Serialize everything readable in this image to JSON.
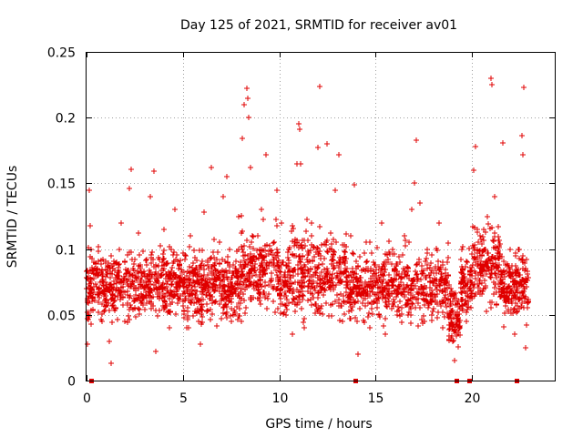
{
  "chart_data": {
    "type": "scatter",
    "title": "Day 125 of 2021, SRMTID for receiver av01",
    "xlabel": "GPS time / hours",
    "ylabel": "SRMTID / TECUs",
    "xlim": [
      0,
      24.3
    ],
    "ylim": [
      0,
      0.25
    ],
    "x_ticks": [
      0,
      5,
      10,
      15,
      20
    ],
    "x_tick_labels": [
      "0",
      "5",
      "10",
      "15",
      "20"
    ],
    "y_ticks": [
      0,
      0.05,
      0.1,
      0.15,
      0.2,
      0.25
    ],
    "y_tick_labels": [
      "0",
      "0.05",
      "0.1",
      "0.15",
      "0.2",
      "0.25"
    ],
    "grid": true,
    "marker": "plus",
    "series_color": "#e00000",
    "zero_markers_x": [
      0.25,
      13.95,
      19.2,
      19.85,
      22.3
    ],
    "series": [
      {
        "name": "SRMTID",
        "points": [
          [
            0.05,
            0.028
          ],
          [
            0.1,
            0.101
          ],
          [
            0.15,
            0.145
          ],
          [
            0.2,
            0.118
          ],
          [
            0.3,
            0.06
          ],
          [
            0.4,
            0.082
          ],
          [
            0.6,
            0.098
          ],
          [
            0.8,
            0.045
          ],
          [
            1.0,
            0.075
          ],
          [
            1.2,
            0.03
          ],
          [
            1.3,
            0.013
          ],
          [
            1.5,
            0.055
          ],
          [
            1.7,
            0.1
          ],
          [
            1.8,
            0.12
          ],
          [
            2.0,
            0.045
          ],
          [
            2.2,
            0.146
          ],
          [
            2.3,
            0.161
          ],
          [
            2.5,
            0.08
          ],
          [
            2.7,
            0.112
          ],
          [
            2.9,
            0.06
          ],
          [
            3.1,
            0.092
          ],
          [
            3.3,
            0.14
          ],
          [
            3.5,
            0.159
          ],
          [
            3.6,
            0.022
          ],
          [
            3.8,
            0.07
          ],
          [
            4.0,
            0.115
          ],
          [
            4.2,
            0.052
          ],
          [
            4.4,
            0.1
          ],
          [
            4.6,
            0.13
          ],
          [
            4.8,
            0.088
          ],
          [
            5.0,
            0.066
          ],
          [
            5.2,
            0.04
          ],
          [
            5.4,
            0.11
          ],
          [
            5.6,
            0.075
          ],
          [
            5.9,
            0.028
          ],
          [
            6.1,
            0.128
          ],
          [
            6.3,
            0.09
          ],
          [
            6.5,
            0.162
          ],
          [
            6.7,
            0.06
          ],
          [
            6.9,
            0.105
          ],
          [
            7.1,
            0.14
          ],
          [
            7.3,
            0.155
          ],
          [
            7.5,
            0.045
          ],
          [
            7.7,
            0.085
          ],
          [
            7.9,
            0.125
          ],
          [
            8.1,
            0.184
          ],
          [
            8.2,
            0.21
          ],
          [
            8.3,
            0.222
          ],
          [
            8.35,
            0.215
          ],
          [
            8.4,
            0.2
          ],
          [
            8.5,
            0.162
          ],
          [
            8.7,
            0.07
          ],
          [
            8.9,
            0.11
          ],
          [
            9.1,
            0.13
          ],
          [
            9.3,
            0.172
          ],
          [
            9.5,
            0.09
          ],
          [
            9.7,
            0.06
          ],
          [
            9.9,
            0.145
          ],
          [
            10.1,
            0.12
          ],
          [
            10.3,
            0.075
          ],
          [
            10.5,
            0.1
          ],
          [
            10.7,
            0.035
          ],
          [
            10.9,
            0.165
          ],
          [
            11.0,
            0.195
          ],
          [
            11.05,
            0.191
          ],
          [
            11.1,
            0.165
          ],
          [
            11.3,
            0.04
          ],
          [
            11.5,
            0.09
          ],
          [
            11.7,
            0.12
          ],
          [
            12.0,
            0.177
          ],
          [
            12.1,
            0.224
          ],
          [
            12.3,
            0.065
          ],
          [
            12.5,
            0.18
          ],
          [
            12.7,
            0.1
          ],
          [
            12.9,
            0.145
          ],
          [
            13.1,
            0.172
          ],
          [
            13.3,
            0.045
          ],
          [
            13.5,
            0.085
          ],
          [
            13.7,
            0.11
          ],
          [
            13.9,
            0.149
          ],
          [
            14.1,
            0.02
          ],
          [
            14.3,
            0.07
          ],
          [
            14.5,
            0.105
          ],
          [
            14.7,
            0.04
          ],
          [
            14.9,
            0.09
          ],
          [
            15.1,
            0.06
          ],
          [
            15.3,
            0.12
          ],
          [
            15.5,
            0.035
          ],
          [
            15.7,
            0.08
          ],
          [
            15.9,
            0.1
          ],
          [
            16.1,
            0.05
          ],
          [
            16.3,
            0.075
          ],
          [
            16.5,
            0.11
          ],
          [
            16.7,
            0.06
          ],
          [
            16.9,
            0.13
          ],
          [
            17.0,
            0.15
          ],
          [
            17.1,
            0.183
          ],
          [
            17.3,
            0.135
          ],
          [
            17.5,
            0.07
          ],
          [
            17.7,
            0.1
          ],
          [
            17.9,
            0.05
          ],
          [
            18.1,
            0.085
          ],
          [
            18.3,
            0.12
          ],
          [
            18.5,
            0.04
          ],
          [
            18.7,
            0.09
          ],
          [
            18.9,
            0.07
          ],
          [
            19.0,
            0.03
          ],
          [
            19.1,
            0.015
          ],
          [
            19.3,
            0.06
          ],
          [
            19.5,
            0.1
          ],
          [
            19.7,
            0.045
          ],
          [
            19.9,
            0.08
          ],
          [
            20.1,
            0.16
          ],
          [
            20.2,
            0.178
          ],
          [
            20.4,
            0.11
          ],
          [
            20.6,
            0.07
          ],
          [
            20.8,
            0.125
          ],
          [
            21.0,
            0.23
          ],
          [
            21.05,
            0.225
          ],
          [
            21.2,
            0.14
          ],
          [
            21.4,
            0.095
          ],
          [
            21.6,
            0.181
          ],
          [
            21.8,
            0.06
          ],
          [
            22.0,
            0.1
          ],
          [
            22.2,
            0.035
          ],
          [
            22.4,
            0.08
          ],
          [
            22.6,
            0.186
          ],
          [
            22.65,
            0.172
          ],
          [
            22.7,
            0.223
          ],
          [
            22.8,
            0.025
          ],
          [
            22.85,
            0.042
          ]
        ]
      }
    ]
  }
}
